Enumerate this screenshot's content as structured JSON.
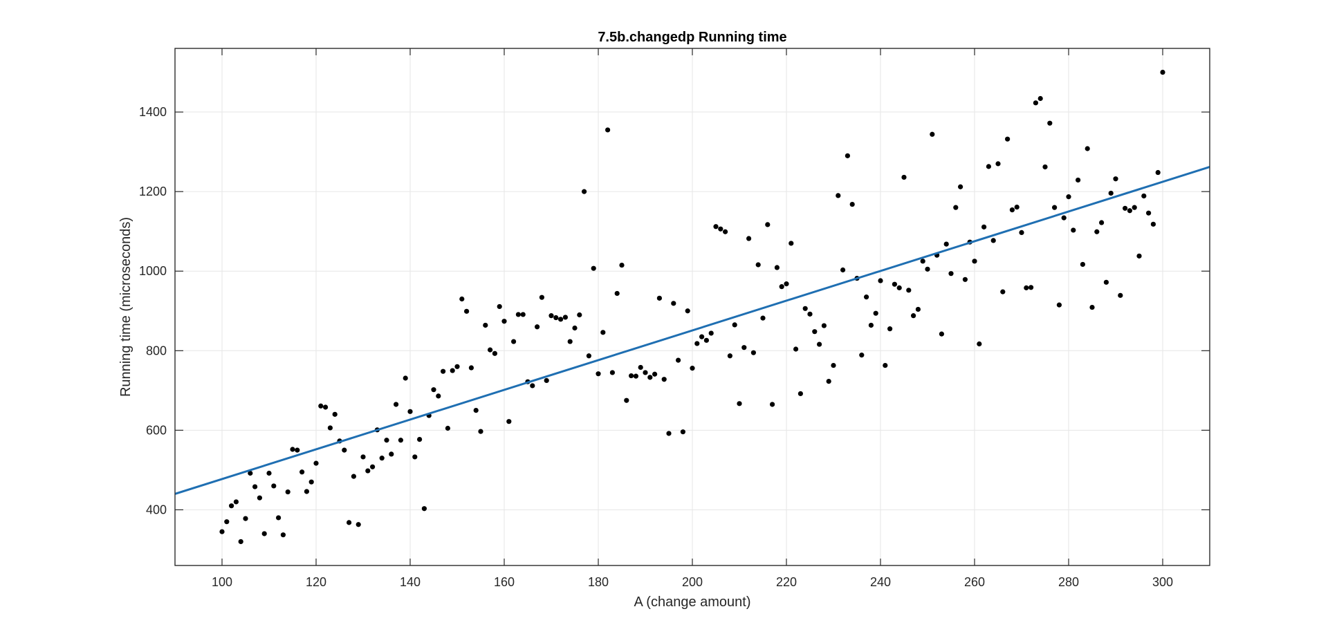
{
  "chart_data": {
    "type": "scatter",
    "title": "7.5b.changedp Running time",
    "xlabel": "A (change amount)",
    "ylabel": "Running time (microseconds)",
    "xlim": [
      90,
      310
    ],
    "ylim": [
      260,
      1560
    ],
    "xticks": [
      100,
      120,
      140,
      160,
      180,
      200,
      220,
      240,
      260,
      280,
      300
    ],
    "yticks": [
      400,
      600,
      800,
      1000,
      1200,
      1400
    ],
    "grid": true,
    "legend": "none",
    "colors": {
      "markers": "#000000",
      "fit_line": "#1f6fb2",
      "grid": "#e6e6e6",
      "axes": "#262626"
    },
    "series": [
      {
        "kind": "scatter",
        "points": [
          [
            100,
            345
          ],
          [
            101,
            370
          ],
          [
            102,
            410
          ],
          [
            103,
            420
          ],
          [
            104,
            320
          ],
          [
            105,
            378
          ],
          [
            106,
            492
          ],
          [
            107,
            458
          ],
          [
            108,
            430
          ],
          [
            109,
            340
          ],
          [
            110,
            492
          ],
          [
            111,
            460
          ],
          [
            112,
            380
          ],
          [
            113,
            337
          ],
          [
            114,
            445
          ],
          [
            115,
            552
          ],
          [
            116,
            550
          ],
          [
            117,
            495
          ],
          [
            118,
            446
          ],
          [
            119,
            470
          ],
          [
            120,
            517
          ],
          [
            121,
            661
          ],
          [
            122,
            658
          ],
          [
            123,
            606
          ],
          [
            124,
            640
          ],
          [
            125,
            573
          ],
          [
            126,
            550
          ],
          [
            127,
            368
          ],
          [
            128,
            484
          ],
          [
            129,
            363
          ],
          [
            130,
            533
          ],
          [
            131,
            498
          ],
          [
            132,
            508
          ],
          [
            133,
            601
          ],
          [
            134,
            530
          ],
          [
            135,
            575
          ],
          [
            136,
            540
          ],
          [
            137,
            665
          ],
          [
            138,
            575
          ],
          [
            139,
            731
          ],
          [
            140,
            647
          ],
          [
            141,
            533
          ],
          [
            142,
            577
          ],
          [
            143,
            403
          ],
          [
            144,
            637
          ],
          [
            145,
            702
          ],
          [
            146,
            686
          ],
          [
            147,
            748
          ],
          [
            148,
            605
          ],
          [
            149,
            750
          ],
          [
            150,
            760
          ],
          [
            151,
            930
          ],
          [
            152,
            899
          ],
          [
            153,
            757
          ],
          [
            154,
            650
          ],
          [
            155,
            597
          ],
          [
            156,
            864
          ],
          [
            157,
            802
          ],
          [
            158,
            793
          ],
          [
            159,
            911
          ],
          [
            160,
            874
          ],
          [
            161,
            622
          ],
          [
            162,
            823
          ],
          [
            163,
            891
          ],
          [
            164,
            891
          ],
          [
            165,
            722
          ],
          [
            166,
            712
          ],
          [
            167,
            860
          ],
          [
            168,
            934
          ],
          [
            169,
            725
          ],
          [
            170,
            888
          ],
          [
            171,
            883
          ],
          [
            172,
            879
          ],
          [
            173,
            884
          ],
          [
            174,
            823
          ],
          [
            175,
            857
          ],
          [
            176,
            890
          ],
          [
            177,
            1200
          ],
          [
            178,
            787
          ],
          [
            179,
            1007
          ],
          [
            180,
            742
          ],
          [
            181,
            846
          ],
          [
            182,
            1355
          ],
          [
            183,
            745
          ],
          [
            184,
            944
          ],
          [
            185,
            1015
          ],
          [
            186,
            675
          ],
          [
            187,
            737
          ],
          [
            188,
            736
          ],
          [
            189,
            758
          ],
          [
            190,
            745
          ],
          [
            191,
            733
          ],
          [
            192,
            741
          ],
          [
            193,
            932
          ],
          [
            194,
            728
          ],
          [
            195,
            592
          ],
          [
            196,
            919
          ],
          [
            197,
            776
          ],
          [
            198,
            596
          ],
          [
            199,
            900
          ],
          [
            200,
            756
          ],
          [
            201,
            818
          ],
          [
            202,
            835
          ],
          [
            203,
            826
          ],
          [
            204,
            844
          ],
          [
            205,
            1112
          ],
          [
            206,
            1106
          ],
          [
            207,
            1099
          ],
          [
            208,
            787
          ],
          [
            209,
            865
          ],
          [
            210,
            667
          ],
          [
            211,
            808
          ],
          [
            212,
            1082
          ],
          [
            213,
            795
          ],
          [
            214,
            1016
          ],
          [
            215,
            882
          ],
          [
            216,
            1117
          ],
          [
            217,
            665
          ],
          [
            218,
            1009
          ],
          [
            219,
            961
          ],
          [
            220,
            968
          ],
          [
            221,
            1070
          ],
          [
            222,
            804
          ],
          [
            223,
            692
          ],
          [
            224,
            906
          ],
          [
            225,
            892
          ],
          [
            226,
            848
          ],
          [
            227,
            816
          ],
          [
            228,
            863
          ],
          [
            229,
            723
          ],
          [
            230,
            763
          ],
          [
            231,
            1190
          ],
          [
            232,
            1003
          ],
          [
            233,
            1290
          ],
          [
            234,
            1168
          ],
          [
            235,
            982
          ],
          [
            236,
            789
          ],
          [
            237,
            935
          ],
          [
            238,
            864
          ],
          [
            239,
            894
          ],
          [
            240,
            976
          ],
          [
            241,
            763
          ],
          [
            242,
            855
          ],
          [
            243,
            967
          ],
          [
            244,
            958
          ],
          [
            245,
            1236
          ],
          [
            246,
            952
          ],
          [
            247,
            888
          ],
          [
            248,
            904
          ],
          [
            249,
            1025
          ],
          [
            250,
            1005
          ],
          [
            251,
            1344
          ],
          [
            252,
            1040
          ],
          [
            253,
            842
          ],
          [
            254,
            1068
          ],
          [
            255,
            994
          ],
          [
            256,
            1160
          ],
          [
            257,
            1212
          ],
          [
            258,
            979
          ],
          [
            259,
            1073
          ],
          [
            260,
            1025
          ],
          [
            261,
            817
          ],
          [
            262,
            1111
          ],
          [
            263,
            1263
          ],
          [
            264,
            1077
          ],
          [
            265,
            1270
          ],
          [
            266,
            948
          ],
          [
            267,
            1332
          ],
          [
            268,
            1154
          ],
          [
            269,
            1161
          ],
          [
            270,
            1097
          ],
          [
            271,
            958
          ],
          [
            272,
            959
          ],
          [
            273,
            1423
          ],
          [
            274,
            1434
          ],
          [
            275,
            1262
          ],
          [
            276,
            1372
          ],
          [
            277,
            1160
          ],
          [
            278,
            915
          ],
          [
            279,
            1134
          ],
          [
            280,
            1187
          ],
          [
            281,
            1103
          ],
          [
            282,
            1229
          ],
          [
            283,
            1017
          ],
          [
            284,
            1308
          ],
          [
            285,
            909
          ],
          [
            286,
            1099
          ],
          [
            287,
            1122
          ],
          [
            288,
            972
          ],
          [
            289,
            1196
          ],
          [
            290,
            1232
          ],
          [
            291,
            939
          ],
          [
            292,
            1158
          ],
          [
            293,
            1152
          ],
          [
            294,
            1160
          ],
          [
            295,
            1038
          ],
          [
            296,
            1189
          ],
          [
            297,
            1146
          ],
          [
            298,
            1118
          ],
          [
            299,
            1248
          ],
          [
            300,
            1500
          ]
        ]
      },
      {
        "kind": "line",
        "points": [
          [
            90,
            440
          ],
          [
            310,
            1262
          ]
        ]
      }
    ]
  }
}
